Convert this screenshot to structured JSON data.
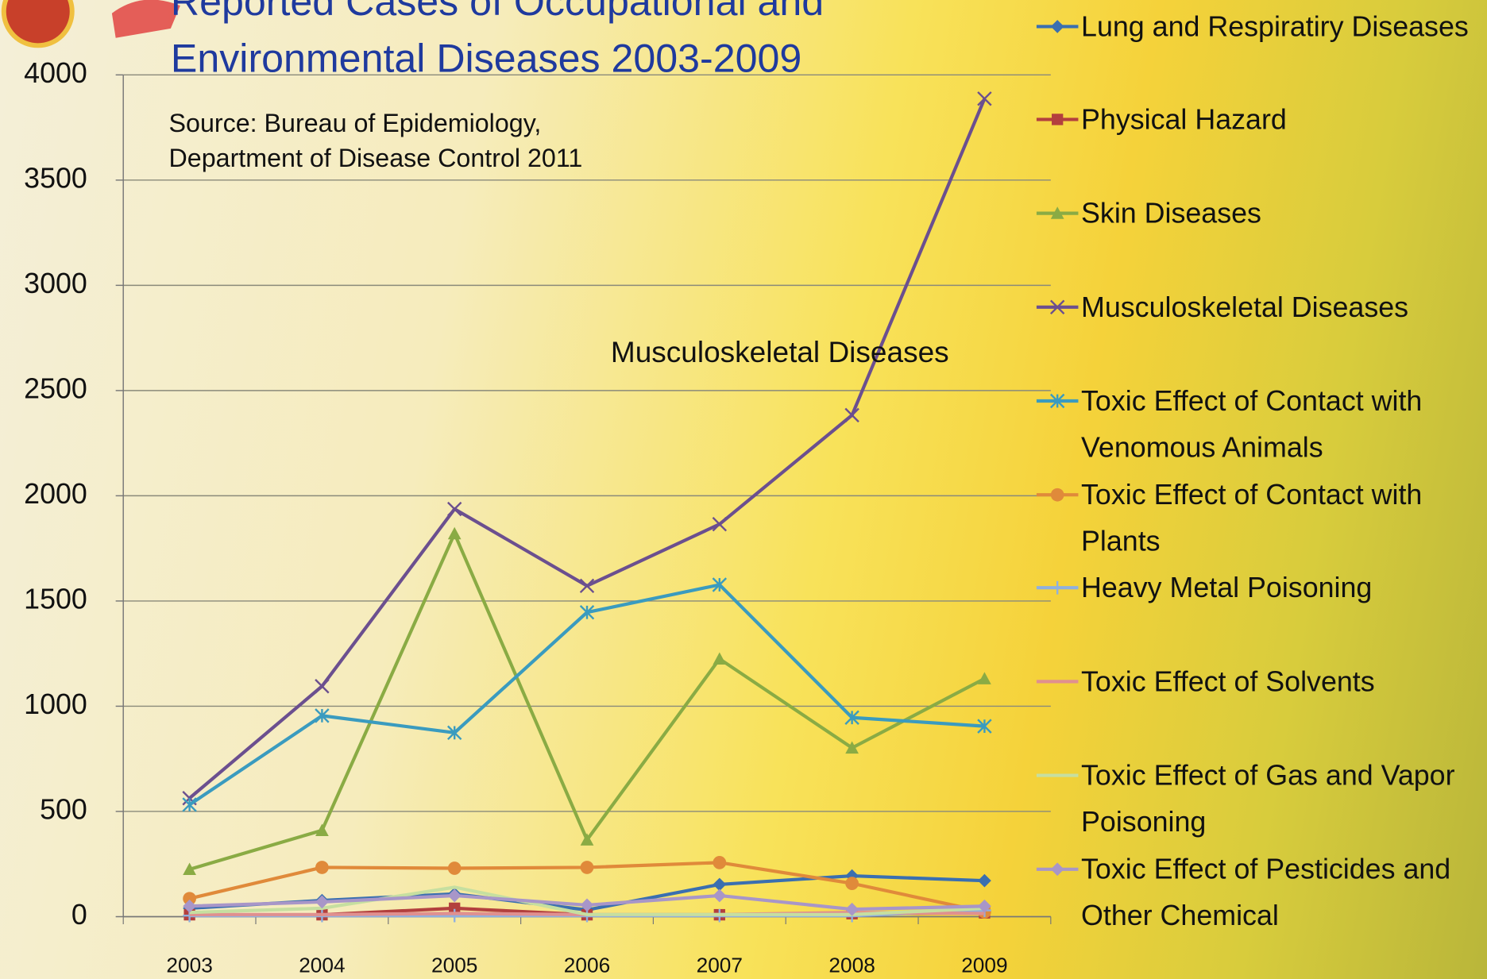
{
  "chart_data": {
    "type": "line",
    "title": [
      "Reported Cases of Occupational and",
      "Environmental Diseases 2003-2009"
    ],
    "subtitle": [
      "Source: Bureau of Epidemiology,",
      "Department of Disease Control 2011"
    ],
    "annotation": "Musculoskeletal Diseases",
    "categories": [
      "2003",
      "2004",
      "2005",
      "2006",
      "2007",
      "2008",
      "2009"
    ],
    "ylim": [
      0,
      4000
    ],
    "yticks": [
      0,
      500,
      1000,
      1500,
      2000,
      2500,
      3000,
      3500,
      4000
    ],
    "grid": true,
    "legend": "right",
    "series": [
      {
        "name": "Lung and Respiratiry Diseases",
        "color": "#3a6fb0",
        "marker": "diamond",
        "values": [
          40,
          77,
          108,
          32,
          153,
          194,
          171
        ]
      },
      {
        "name": "Physical Hazard",
        "color": "#b3403e",
        "marker": "square",
        "values": [
          9,
          9,
          40,
          9,
          9,
          14,
          18
        ]
      },
      {
        "name": "Skin Diseases",
        "color": "#8aab44",
        "marker": "triangle",
        "values": [
          225,
          410,
          1820,
          365,
          1225,
          802,
          1131
        ]
      },
      {
        "name": "Musculoskeletal Diseases",
        "color": "#6b4f8f",
        "marker": "x",
        "values": [
          563,
          1095,
          1937,
          1572,
          1865,
          2383,
          3887
        ]
      },
      {
        "name": "Toxic Effect of Contact with Venomous Animals",
        "color": "#3a9bbf",
        "marker": "star",
        "values": [
          532,
          955,
          874,
          1446,
          1577,
          946,
          905
        ]
      },
      {
        "name": "Toxic Effect of Contact with Plants",
        "color": "#e08a3a",
        "marker": "circle",
        "values": [
          86,
          234,
          230,
          234,
          257,
          158,
          23
        ]
      },
      {
        "name": "Heavy Metal Poisoning",
        "color": "#8fb0df",
        "marker": "plus",
        "values": [
          5,
          5,
          5,
          5,
          5,
          5,
          30
        ]
      },
      {
        "name": "Toxic Effect of Solvents",
        "color": "#e0908f",
        "marker": "none",
        "values": [
          10,
          10,
          15,
          10,
          10,
          20,
          15
        ]
      },
      {
        "name": "Toxic Effect of Gas and Vapor Poisoning",
        "color": "#c6dfa0",
        "marker": "none",
        "values": [
          20,
          40,
          140,
          10,
          10,
          10,
          40
        ]
      },
      {
        "name": "Toxic Effect of Pesticides and Other Chemical",
        "color": "#a896c8",
        "marker": "diamond",
        "values": [
          50,
          70,
          100,
          55,
          100,
          35,
          50
        ]
      }
    ]
  }
}
